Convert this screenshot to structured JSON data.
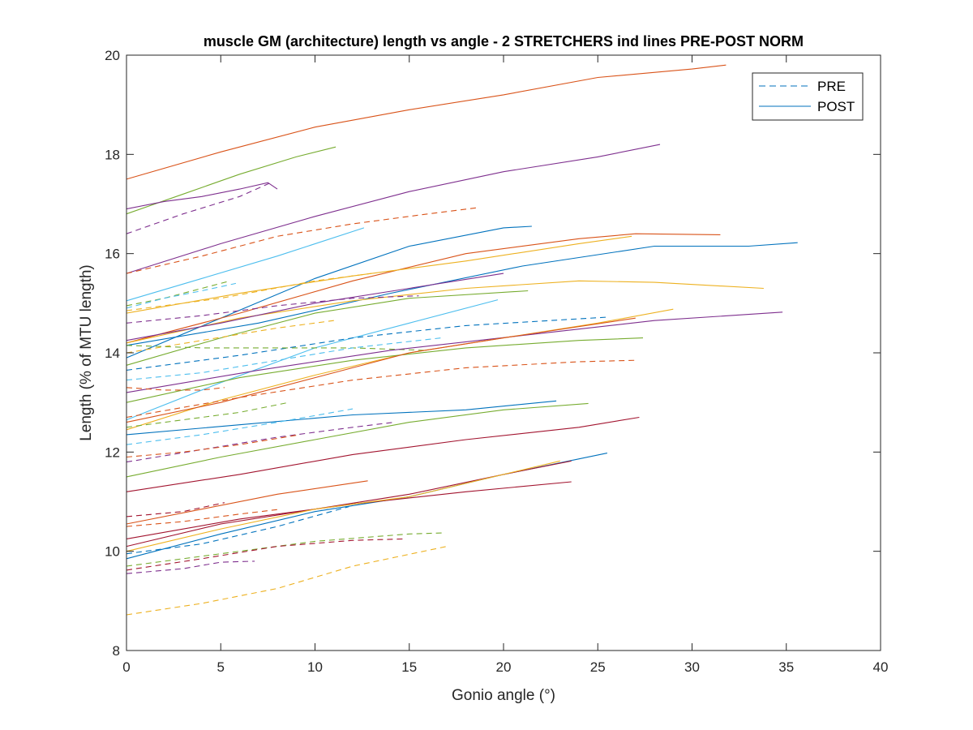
{
  "chart_data": {
    "type": "line",
    "title": "muscle GM (architecture) length vs angle - 2 STRETCHERS ind lines PRE-POST NORM",
    "xlabel": "Gonio angle (°)",
    "ylabel": "Length (% of MTU length)",
    "xlim": [
      0,
      40
    ],
    "ylim": [
      8,
      20
    ],
    "xticks": [
      "0",
      "5",
      "10",
      "15",
      "20",
      "25",
      "30",
      "35",
      "40"
    ],
    "yticks": [
      "8",
      "10",
      "12",
      "14",
      "16",
      "18",
      "20"
    ],
    "grid": false,
    "legend": {
      "placement": "top-right",
      "entries": [
        {
          "label": "PRE",
          "style": "dashed",
          "color": "#0072BD"
        },
        {
          "label": "POST",
          "style": "solid",
          "color": "#0072BD"
        }
      ]
    },
    "series": [
      {
        "group": "POST",
        "color": "#D95319",
        "x": [
          0,
          5,
          10,
          15,
          20,
          25,
          30,
          31.8
        ],
        "y": [
          17.5,
          18.05,
          18.55,
          18.9,
          19.2,
          19.55,
          19.72,
          19.8
        ]
      },
      {
        "group": "POST",
        "color": "#77AC30",
        "x": [
          0,
          3,
          6,
          9,
          11.1
        ],
        "y": [
          16.8,
          17.2,
          17.6,
          17.95,
          18.15
        ]
      },
      {
        "group": "POST",
        "color": "#7E2F8E",
        "x": [
          0,
          2,
          4,
          6,
          7.5,
          8.0
        ],
        "y": [
          16.9,
          17.05,
          17.15,
          17.3,
          17.43,
          17.3
        ]
      },
      {
        "group": "PRE",
        "color": "#7E2F8E",
        "x": [
          0,
          3,
          6,
          7.6
        ],
        "y": [
          16.4,
          16.8,
          17.15,
          17.42
        ]
      },
      {
        "group": "POST",
        "color": "#7E2F8E",
        "x": [
          0,
          5,
          10,
          15,
          20,
          25,
          28.3
        ],
        "y": [
          15.6,
          16.2,
          16.75,
          17.25,
          17.65,
          17.95,
          18.2
        ]
      },
      {
        "group": "PRE",
        "color": "#D95319",
        "x": [
          0,
          4,
          8,
          12,
          16,
          18.7
        ],
        "y": [
          15.6,
          15.95,
          16.35,
          16.6,
          16.8,
          16.93
        ]
      },
      {
        "group": "POST",
        "color": "#4DBEEE",
        "x": [
          0,
          4,
          8,
          12.6
        ],
        "y": [
          15.05,
          15.5,
          15.95,
          16.52
        ]
      },
      {
        "group": "POST",
        "color": "#0072BD",
        "x": [
          0,
          5,
          10,
          15,
          20,
          21.5
        ],
        "y": [
          13.9,
          14.7,
          15.5,
          16.15,
          16.52,
          16.55
        ]
      },
      {
        "group": "POST",
        "color": "#D95319",
        "x": [
          0,
          6,
          12,
          18,
          24,
          27,
          31.5
        ],
        "y": [
          14.2,
          14.8,
          15.45,
          16.0,
          16.3,
          16.4,
          16.38
        ]
      },
      {
        "group": "POST",
        "color": "#0072BD",
        "x": [
          0,
          7,
          14,
          21,
          28,
          31.5,
          33,
          35.6
        ],
        "y": [
          14.15,
          14.6,
          15.2,
          15.75,
          16.15,
          16.15,
          16.15,
          16.22
        ]
      },
      {
        "group": "POST",
        "color": "#EDB120",
        "x": [
          0,
          6,
          12,
          18,
          24,
          26.8
        ],
        "y": [
          14.8,
          15.2,
          15.55,
          15.85,
          16.2,
          16.35
        ]
      },
      {
        "group": "POST",
        "color": "#EDB120",
        "x": [
          0,
          6,
          12,
          18,
          24,
          28,
          33.8
        ],
        "y": [
          14.2,
          14.7,
          15.05,
          15.3,
          15.45,
          15.42,
          15.3
        ]
      },
      {
        "group": "PRE",
        "color": "#77AC30",
        "x": [
          0,
          2,
          4,
          5.5
        ],
        "y": [
          14.95,
          15.1,
          15.3,
          15.45
        ]
      },
      {
        "group": "PRE",
        "color": "#4DBEEE",
        "x": [
          0,
          2,
          4,
          5.8
        ],
        "y": [
          14.9,
          15.1,
          15.25,
          15.4
        ]
      },
      {
        "group": "PRE",
        "color": "#EDB120",
        "x": [
          0,
          5,
          10,
          13
        ],
        "y": [
          14.85,
          15.1,
          15.45,
          15.6
        ]
      },
      {
        "group": "PRE",
        "color": "#7E2F8E",
        "x": [
          0,
          4,
          8,
          12,
          15.5
        ],
        "y": [
          14.6,
          14.75,
          14.95,
          15.1,
          15.15
        ]
      },
      {
        "group": "POST",
        "color": "#7E2F8E",
        "x": [
          0,
          5,
          10,
          15,
          20
        ],
        "y": [
          14.25,
          14.6,
          15.0,
          15.3,
          15.6
        ]
      },
      {
        "group": "POST",
        "color": "#4DBEEE",
        "x": [
          0,
          5,
          10,
          15,
          19.7
        ],
        "y": [
          12.65,
          13.4,
          14.1,
          14.6,
          15.07
        ]
      },
      {
        "group": "POST",
        "color": "#77AC30",
        "x": [
          0,
          5,
          10,
          15,
          21.3
        ],
        "y": [
          13.75,
          14.3,
          14.8,
          15.1,
          15.25
        ]
      },
      {
        "group": "PRE",
        "color": "#EDB120",
        "x": [
          0,
          4,
          8,
          11.0
        ],
        "y": [
          14.0,
          14.25,
          14.5,
          14.65
        ]
      },
      {
        "group": "PRE",
        "color": "#0072BD",
        "x": [
          0,
          6,
          12,
          18,
          25.5
        ],
        "y": [
          13.65,
          13.95,
          14.3,
          14.55,
          14.72
        ]
      },
      {
        "group": "PRE",
        "color": "#77AC30",
        "x": [
          0,
          4,
          8,
          12,
          15.8
        ],
        "y": [
          14.15,
          14.1,
          14.1,
          14.1,
          14.05
        ]
      },
      {
        "group": "POST",
        "color": "#7E2F8E",
        "x": [
          0,
          7,
          14,
          21,
          28,
          34.8
        ],
        "y": [
          13.2,
          13.65,
          14.05,
          14.35,
          14.65,
          14.82
        ]
      },
      {
        "group": "POST",
        "color": "#EDB120",
        "x": [
          0,
          5,
          10,
          15,
          20,
          25,
          29.0
        ],
        "y": [
          12.45,
          13.05,
          13.55,
          14.0,
          14.3,
          14.6,
          14.88
        ]
      },
      {
        "group": "POST",
        "color": "#77AC30",
        "x": [
          0,
          6,
          12,
          18,
          24,
          27.4
        ],
        "y": [
          13.0,
          13.5,
          13.85,
          14.1,
          14.25,
          14.3
        ]
      },
      {
        "group": "POST",
        "color": "#D95319",
        "x": [
          0,
          5,
          10,
          15,
          20,
          27.0
        ],
        "y": [
          12.6,
          13.0,
          13.5,
          14.0,
          14.3,
          14.7
        ]
      },
      {
        "group": "PRE",
        "color": "#4DBEEE",
        "x": [
          0,
          4,
          8,
          12,
          16.7
        ],
        "y": [
          13.45,
          13.6,
          13.85,
          14.1,
          14.3
        ]
      },
      {
        "group": "PRE",
        "color": "#D95319",
        "x": [
          0,
          6,
          12,
          18,
          24,
          27.0
        ],
        "y": [
          12.7,
          13.1,
          13.45,
          13.7,
          13.82,
          13.85
        ]
      },
      {
        "group": "PRE",
        "color": "#D95319",
        "x": [
          0,
          2,
          4,
          5.2
        ],
        "y": [
          13.3,
          13.25,
          13.25,
          13.3
        ]
      },
      {
        "group": "PRE",
        "color": "#77AC30",
        "x": [
          0,
          3,
          6,
          8.6
        ],
        "y": [
          12.5,
          12.65,
          12.8,
          13.0
        ]
      },
      {
        "group": "POST",
        "color": "#0072BD",
        "x": [
          0,
          6,
          12,
          18,
          22.8
        ],
        "y": [
          12.35,
          12.55,
          12.75,
          12.85,
          13.03
        ]
      },
      {
        "group": "POST",
        "color": "#77AC30",
        "x": [
          0,
          5,
          10,
          15,
          20,
          24.5
        ],
        "y": [
          11.5,
          11.9,
          12.25,
          12.6,
          12.85,
          12.98
        ]
      },
      {
        "group": "PRE",
        "color": "#4DBEEE",
        "x": [
          0,
          4,
          8,
          12.0
        ],
        "y": [
          12.15,
          12.35,
          12.6,
          12.87
        ]
      },
      {
        "group": "PRE",
        "color": "#7E2F8E",
        "x": [
          0,
          4,
          8,
          12,
          14.2
        ],
        "y": [
          11.8,
          12.05,
          12.3,
          12.5,
          12.6
        ]
      },
      {
        "group": "PRE",
        "color": "#D95319",
        "x": [
          0,
          3,
          6,
          9.2
        ],
        "y": [
          11.9,
          12.0,
          12.15,
          12.35
        ]
      },
      {
        "group": "POST",
        "color": "#A2142F",
        "x": [
          0,
          6,
          12,
          18,
          24,
          27.2
        ],
        "y": [
          11.2,
          11.55,
          11.95,
          12.25,
          12.5,
          12.7
        ]
      },
      {
        "group": "POST",
        "color": "#D95319",
        "x": [
          0,
          4,
          8,
          12.8
        ],
        "y": [
          10.55,
          10.85,
          11.15,
          11.42
        ]
      },
      {
        "group": "POST",
        "color": "#0072BD",
        "x": [
          0,
          5,
          10,
          15,
          20,
          25.5
        ],
        "y": [
          9.85,
          10.35,
          10.8,
          11.1,
          11.55,
          11.98
        ]
      },
      {
        "group": "POST",
        "color": "#A2142F",
        "x": [
          0,
          5,
          10,
          15,
          20,
          23.6
        ],
        "y": [
          10.1,
          10.55,
          10.85,
          11.15,
          11.55,
          11.82
        ]
      },
      {
        "group": "POST",
        "color": "#A2142F",
        "x": [
          0,
          6,
          12,
          18,
          23.6
        ],
        "y": [
          10.25,
          10.65,
          10.95,
          11.2,
          11.4
        ]
      },
      {
        "group": "POST",
        "color": "#EDB120",
        "x": [
          0,
          5,
          10,
          15,
          23.0
        ],
        "y": [
          10.0,
          10.45,
          10.85,
          11.1,
          11.82
        ]
      },
      {
        "group": "PRE",
        "color": "#A2142F",
        "x": [
          0,
          3,
          5.2
        ],
        "y": [
          10.7,
          10.8,
          10.98
        ]
      },
      {
        "group": "PRE",
        "color": "#D95319",
        "x": [
          0,
          3,
          6,
          8.2
        ],
        "y": [
          10.5,
          10.6,
          10.75,
          10.85
        ]
      },
      {
        "group": "PRE",
        "color": "#0072BD",
        "x": [
          0,
          4,
          8,
          11.8
        ],
        "y": [
          9.95,
          10.15,
          10.5,
          10.9
        ]
      },
      {
        "group": "PRE",
        "color": "#77AC30",
        "x": [
          0,
          5,
          10,
          15,
          16.8
        ],
        "y": [
          9.7,
          9.95,
          10.2,
          10.35,
          10.37
        ]
      },
      {
        "group": "PRE",
        "color": "#A2142F",
        "x": [
          0,
          4,
          8,
          12,
          14.8
        ],
        "y": [
          9.62,
          9.85,
          10.1,
          10.22,
          10.25
        ]
      },
      {
        "group": "PRE",
        "color": "#7E2F8E",
        "x": [
          0,
          3,
          5,
          6.8
        ],
        "y": [
          9.55,
          9.65,
          9.78,
          9.8
        ]
      },
      {
        "group": "PRE",
        "color": "#EDB120",
        "x": [
          0,
          4,
          8,
          12,
          17.0
        ],
        "y": [
          8.72,
          8.95,
          9.25,
          9.7,
          10.1
        ]
      }
    ]
  }
}
